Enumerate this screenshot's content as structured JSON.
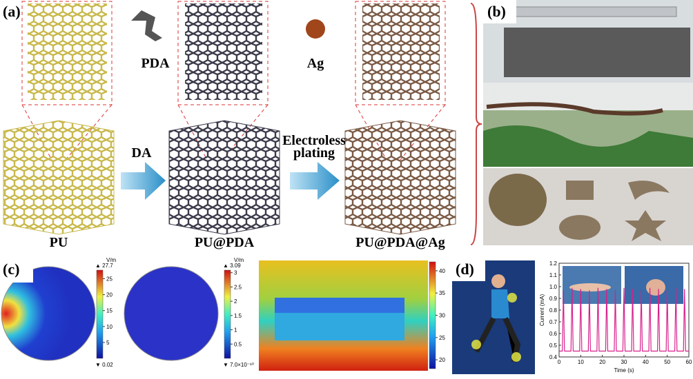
{
  "panel_a": {
    "label": "(a)",
    "pda": "PDA",
    "ag": "Ag",
    "step1": "DA",
    "step2": [
      "Electroless",
      "plating"
    ],
    "stages": [
      "PU",
      "PU@PDA",
      "PU@PDA@Ag"
    ]
  },
  "panel_b": {
    "label": "(b)"
  },
  "panel_c": {
    "label": "(c)",
    "colorbars": [
      {
        "unit": "V/m",
        "max_label": "▲ 27.7",
        "min_label": "▼ 0.02",
        "lim": [
          0.02,
          27.7
        ],
        "ticks": [
          5,
          10,
          15,
          20,
          25
        ]
      },
      {
        "unit": "V/m",
        "max_label": "▲ 3.09",
        "min_label": "▼ 7.0×10⁻¹⁰",
        "lim": [
          0,
          3.09
        ],
        "ticks": [
          0.5,
          1,
          1.5,
          2,
          2.5,
          3
        ]
      },
      {
        "lim": [
          18,
          42
        ],
        "ticks": [
          20,
          25,
          30,
          35,
          40
        ]
      }
    ]
  },
  "panel_d": {
    "label": "(d)"
  },
  "chart_data": {
    "type": "line",
    "xlabel": "Time (s)",
    "ylabel": "Current (mA)",
    "color": "#d8208c",
    "x": [
      0,
      1.5,
      2,
      2.5,
      5.5,
      6,
      6.5,
      9.5,
      10,
      10.5,
      13.5,
      14,
      14.5,
      17.5,
      18,
      18.5,
      21.5,
      22,
      22.5,
      25.5,
      26,
      26.5,
      29.5,
      30,
      30.5,
      33.5,
      34,
      34.5,
      37.5,
      38,
      38.5,
      41.5,
      42,
      42.5,
      45.5,
      46,
      46.5,
      49.5,
      50,
      50.5,
      53.5,
      54,
      54.5,
      57.5,
      58,
      58.5,
      60
    ],
    "values": [
      0.45,
      0.45,
      0.97,
      0.45,
      0.45,
      0.99,
      0.45,
      0.45,
      0.98,
      0.45,
      0.45,
      0.97,
      0.45,
      0.45,
      0.99,
      0.45,
      0.45,
      0.98,
      0.45,
      0.45,
      0.97,
      0.45,
      0.45,
      0.99,
      0.45,
      0.45,
      0.98,
      0.45,
      0.45,
      0.97,
      0.45,
      0.45,
      0.99,
      0.45,
      0.45,
      0.98,
      0.45,
      0.45,
      0.97,
      0.45,
      0.45,
      0.99,
      0.45,
      0.45,
      0.98,
      0.45,
      0.45
    ],
    "xlim": [
      0,
      60
    ],
    "ylim": [
      0.4,
      1.2
    ],
    "xticks": [
      0,
      10,
      20,
      30,
      40,
      50,
      60
    ],
    "yticks": [
      0.4,
      0.5,
      0.6,
      0.7,
      0.8,
      0.9,
      {
        "value": 1,
        "label": "1.0"
      },
      1.1,
      1.2
    ]
  }
}
